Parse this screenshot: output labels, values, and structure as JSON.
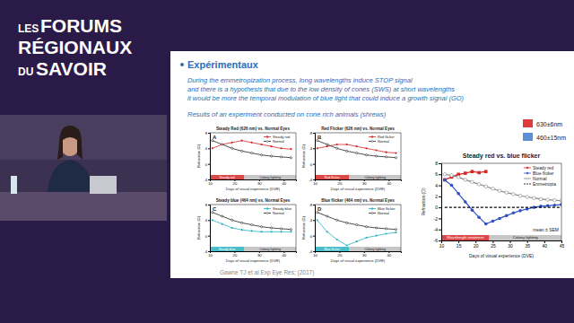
{
  "header": {
    "logo": [
      "LES",
      "FORUMS",
      "RÉGIONAUX",
      "DU",
      "SAVOIR"
    ]
  },
  "slide": {
    "title": "Expérimentaux",
    "text": [
      "During the emmetropization process, long wavelengths induce STOP signal",
      "and there is a hypothesis that due to the low density of cones (SWS) at short wavelengths",
      "it would be more the temporal modulation of blue light that could induce a growth signal (GO)"
    ],
    "subtitle": "Results of an experiment conducted on cone rich animals (shrews)",
    "color_key": [
      {
        "label": "630±6nm",
        "color": "#e03b3b"
      },
      {
        "label": "460±15nm",
        "color": "#5b8fd6"
      }
    ],
    "citation": "Gawne TJ et al Exp Eye Res; (2017)"
  },
  "chart_data": [
    {
      "type": "line",
      "title": "Steady Red (626 nm) vs. Normal Eyes",
      "x_label": "Days of visual experience (DVE)",
      "y_label": "Refraction (D)",
      "x": [
        11,
        15,
        19,
        23,
        27,
        31,
        35,
        39,
        43
      ],
      "series": [
        {
          "name": "Steady red",
          "color": "#d62728",
          "marker": "circle",
          "line_style": "solid",
          "values": [
            4,
            5,
            5.5,
            6,
            5.5,
            5,
            4.5,
            4,
            3.8
          ]
        },
        {
          "name": "Normal",
          "color": "#222222",
          "marker": "open_circle",
          "line_style": "solid",
          "values": [
            6,
            5,
            4,
            3.3,
            2.8,
            2.3,
            2,
            1.8,
            1.6
          ]
        }
      ],
      "phases": [
        {
          "label": "Steady red",
          "start": 10,
          "end": 24
        },
        {
          "label": "Colony lighting",
          "start": 24,
          "end": 45
        }
      ],
      "annotations": [
        "A"
      ],
      "xlim": [
        10,
        45
      ],
      "xticks": [
        10,
        20,
        30,
        40
      ],
      "ylim": [
        -4,
        8
      ],
      "yticks": [
        -4,
        0,
        4,
        8
      ],
      "legend": "upper right"
    },
    {
      "type": "line",
      "title": "Red Flicker (626 nm) vs. Normal Eyes",
      "x_label": "Days of visual experience (DVE)",
      "y_label": "Refraction (D)",
      "x": [
        11,
        15,
        19,
        23,
        27,
        31,
        35,
        39,
        43
      ],
      "series": [
        {
          "name": "Red flicker",
          "color": "#d62728",
          "marker": "circle",
          "line_style": "solid",
          "values": [
            4,
            4.5,
            5,
            5,
            4.5,
            4,
            3.5,
            3,
            2.8
          ]
        },
        {
          "name": "Normal",
          "color": "#222222",
          "marker": "open_circle",
          "line_style": "solid",
          "values": [
            6,
            5,
            4,
            3.3,
            2.8,
            2.3,
            2,
            1.8,
            1.6
          ]
        }
      ],
      "phases": [
        {
          "label": "Red flicker",
          "start": 10,
          "end": 24
        },
        {
          "label": "Colony lighting",
          "start": 24,
          "end": 45
        }
      ],
      "annotations": [
        "B"
      ],
      "xlim": [
        10,
        45
      ],
      "xticks": [
        10,
        20,
        30,
        40
      ],
      "ylim": [
        -4,
        8
      ],
      "yticks": [
        -4,
        0,
        4,
        8
      ],
      "legend": "upper right"
    },
    {
      "type": "line",
      "title": "Steady blue (464 nm) vs. Normal Eyes",
      "x_label": "Days of visual experience (DVE)",
      "y_label": "Refraction (D)",
      "x": [
        11,
        15,
        19,
        23,
        27,
        31,
        35,
        39,
        43
      ],
      "series": [
        {
          "name": "Steady blue",
          "color": "#27b3c2",
          "marker": "circle",
          "line_style": "solid",
          "values": [
            4,
            3,
            2,
            1.5,
            1.2,
            1,
            1,
            1,
            1
          ]
        },
        {
          "name": "Normal",
          "color": "#222222",
          "marker": "open_circle",
          "line_style": "solid",
          "values": [
            6,
            5,
            4,
            3.3,
            2.8,
            2.3,
            2,
            1.8,
            1.6
          ]
        }
      ],
      "phases": [
        {
          "label": "Steady blue",
          "start": 10,
          "end": 24
        },
        {
          "label": "Colony lighting",
          "start": 24,
          "end": 45
        }
      ],
      "annotations": [
        "C"
      ],
      "xlim": [
        10,
        45
      ],
      "xticks": [
        10,
        20,
        30,
        40
      ],
      "ylim": [
        -4,
        8
      ],
      "yticks": [
        -4,
        0,
        4,
        8
      ],
      "legend": "upper right"
    },
    {
      "type": "line",
      "title": "Blue flicker (464 nm) vs. Normal Eyes",
      "x_label": "Days of visual experience (DVE)",
      "y_label": "Refraction (D)",
      "x": [
        11,
        15,
        19,
        23,
        27,
        31,
        35,
        39,
        43
      ],
      "series": [
        {
          "name": "Blue flicker",
          "color": "#27b3c2",
          "marker": "circle",
          "line_style": "solid",
          "values": [
            4,
            1,
            -1,
            -2.5,
            -1.5,
            -0.5,
            0,
            0.5,
            0.8
          ]
        },
        {
          "name": "Normal",
          "color": "#222222",
          "marker": "open_circle",
          "line_style": "solid",
          "values": [
            6,
            5,
            4,
            3.3,
            2.8,
            2.3,
            2,
            1.8,
            1.6
          ]
        }
      ],
      "phases": [
        {
          "label": "Blue flicker",
          "start": 10,
          "end": 24
        },
        {
          "label": "Colony lighting",
          "start": 24,
          "end": 45
        }
      ],
      "annotations": [
        "D"
      ],
      "xlim": [
        10,
        45
      ],
      "xticks": [
        10,
        20,
        30,
        40
      ],
      "ylim": [
        -4,
        8
      ],
      "yticks": [
        -4,
        0,
        4,
        8
      ],
      "legend": "upper right"
    },
    {
      "type": "line",
      "title": "Steady red vs. blue flicker",
      "x_label": "Days of visual experience (DVE)",
      "y_label": "Refraction (D)",
      "x": [
        11,
        13,
        15,
        17,
        19,
        21,
        23,
        25,
        27,
        29,
        31,
        33,
        35,
        37,
        39,
        41,
        43,
        45
      ],
      "series": [
        {
          "name": "Steady red",
          "color": "#d62728",
          "marker": "square",
          "line_style": "solid",
          "values": [
            5,
            5.5,
            6,
            6.2,
            6.5,
            6.3,
            6.5,
            null,
            null,
            null,
            null,
            null,
            null,
            null,
            null,
            null,
            null,
            null
          ]
        },
        {
          "name": "Blue flicker",
          "color": "#3050c8",
          "marker": "circle",
          "line_style": "solid",
          "values": [
            5,
            4,
            2.5,
            1,
            -0.5,
            -1.8,
            -3,
            -2.5,
            -2,
            -1.5,
            -1,
            -0.6,
            -0.3,
            0,
            0.2,
            0.3,
            0.4,
            0.5
          ]
        },
        {
          "name": "Normal",
          "color": "#888888",
          "marker": "open_circle",
          "line_style": "solid",
          "values": [
            6,
            5.8,
            5.5,
            5,
            4.6,
            4.2,
            3.8,
            3.4,
            3,
            2.7,
            2.4,
            2.1,
            1.9,
            1.7,
            1.5,
            1.4,
            1.3,
            1.2
          ]
        },
        {
          "name": "Emmetropia",
          "color": "#000000",
          "marker": "none",
          "line_style": "dashed",
          "values": [
            0,
            0,
            0,
            0,
            0,
            0,
            0,
            0,
            0,
            0,
            0,
            0,
            0,
            0,
            0,
            0,
            0,
            0
          ]
        }
      ],
      "phases": [
        {
          "label": "Wavelength treatment",
          "start": 10,
          "end": 24
        },
        {
          "label": "Colony lighting",
          "start": 24,
          "end": 45
        }
      ],
      "annotations": [
        "mean ± SEM"
      ],
      "xlim": [
        10,
        45
      ],
      "xticks": [
        10,
        15,
        20,
        25,
        30,
        35,
        40,
        45
      ],
      "ylim": [
        -6,
        8
      ],
      "yticks": [
        -6,
        -4,
        -2,
        0,
        2,
        4,
        6,
        8
      ],
      "legend": "upper right"
    }
  ]
}
